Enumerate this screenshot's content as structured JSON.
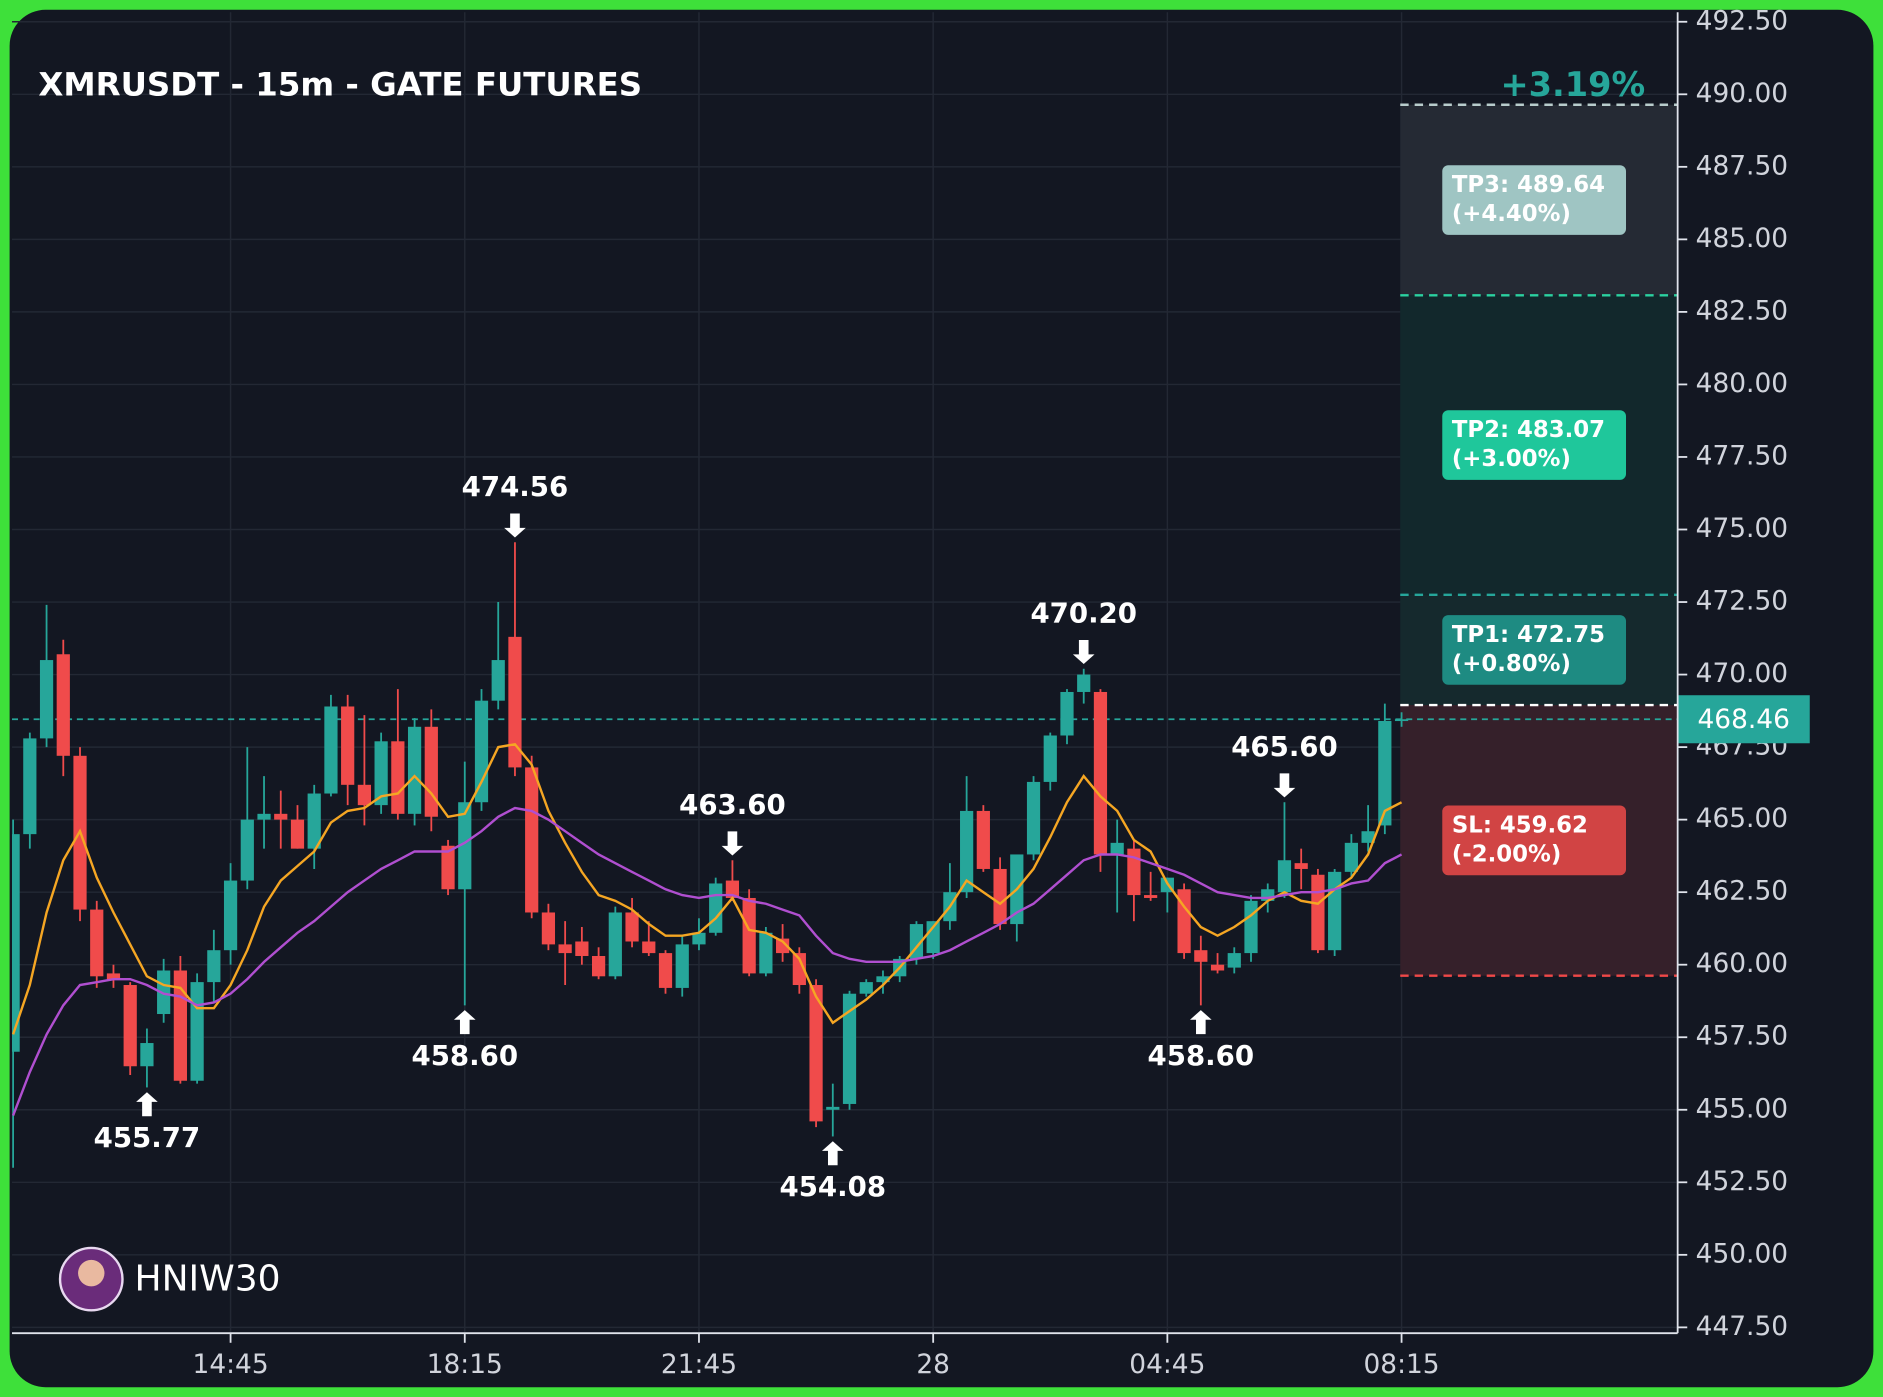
{
  "chart_data": {
    "type": "candlestick",
    "title": "XMRUSDT - 15m - GATE FUTURES",
    "change_label": "+3.19%",
    "watermark": "HNIW30",
    "categories": [
      null,
      null,
      null,
      null,
      null,
      null,
      null,
      null,
      null,
      null,
      null,
      null,
      null,
      "14:45",
      null,
      null,
      null,
      null,
      null,
      null,
      null,
      null,
      null,
      null,
      null,
      null,
      null,
      "18:15",
      null,
      null,
      null,
      null,
      null,
      null,
      null,
      null,
      null,
      null,
      null,
      null,
      null,
      "21:45",
      null,
      null,
      null,
      null,
      null,
      null,
      null,
      null,
      null,
      null,
      null,
      null,
      null,
      "28",
      null,
      null,
      null,
      null,
      null,
      null,
      null,
      null,
      null,
      null,
      null,
      null,
      null,
      "04:45",
      null,
      null,
      null,
      null,
      null,
      null,
      null,
      null,
      null,
      null,
      null,
      null,
      null,
      "08:15"
    ],
    "ohlc": {
      "open": [
        457,
        464.5,
        467.8,
        470.7,
        467.2,
        461.9,
        459.7,
        459.3,
        456.5,
        458.3,
        459.8,
        456.0,
        459.4,
        460.5,
        462.9,
        465.0,
        465.2,
        465.0,
        464,
        465.9,
        468.9,
        466.2,
        465.5,
        467.7,
        465.2,
        468.2,
        464.1,
        462.6,
        465.6,
        469.1,
        471.3,
        466.8,
        461.8,
        460.7,
        460.8,
        460.3,
        459.6,
        461.8,
        460.8,
        460.4,
        459.2,
        460.7,
        461.1,
        462.9,
        462.3,
        459.7,
        460.9,
        460.4,
        459.3,
        455.0,
        455.2,
        459,
        459.4,
        459.6,
        460.2,
        460.4,
        461.5,
        462.5,
        465.3,
        463.3,
        461.4,
        463.8,
        466.3,
        467.9,
        469.4,
        469.4,
        463.8,
        464.0,
        462.4,
        462.5,
        462.6,
        460.5,
        460,
        459.9,
        460.4,
        462.2,
        462.5,
        463.5,
        463.1,
        460.5,
        463.2,
        464.2,
        464.8,
        468.4
      ],
      "high": [
        465,
        468,
        472.4,
        471.2,
        467.5,
        462.2,
        460,
        459.4,
        457.8,
        460.2,
        460.3,
        459.7,
        461.2,
        463.5,
        467.5,
        466.5,
        466,
        465.5,
        466.2,
        469.3,
        469.3,
        468.6,
        468,
        469.5,
        468.5,
        468.8,
        464.3,
        467,
        469.5,
        472.5,
        474.56,
        467.2,
        462.1,
        461.5,
        461.3,
        460.6,
        462,
        462.3,
        461.5,
        460.5,
        461,
        461.6,
        463,
        463.6,
        462.6,
        461.3,
        461.4,
        460.6,
        459.5,
        455.9,
        459.1,
        459.5,
        459.8,
        460.3,
        461.5,
        461.5,
        463.5,
        466.5,
        465.5,
        463.7,
        463.8,
        466.5,
        468,
        469.5,
        470.2,
        469.5,
        465,
        464.3,
        463.2,
        463,
        462.8,
        461,
        460.4,
        460.6,
        462.4,
        462.8,
        465.6,
        464,
        463.3,
        463.3,
        464.5,
        465.5,
        469,
        468.7
      ],
      "low": [
        453,
        464,
        467.5,
        466.5,
        461.5,
        459.2,
        459.2,
        456.2,
        455.77,
        458,
        455.9,
        455.9,
        458.7,
        460,
        462.6,
        464,
        464,
        464,
        463.3,
        465.8,
        465.5,
        464.8,
        465.2,
        465,
        464.8,
        464.6,
        462.4,
        458.6,
        465.3,
        468.8,
        466.5,
        461.6,
        460.5,
        459.3,
        460,
        459.5,
        459.5,
        460.6,
        460.3,
        459,
        458.9,
        460.5,
        461,
        462.2,
        459.6,
        459.6,
        460.1,
        459,
        454.4,
        454.08,
        455,
        458.9,
        459,
        459.4,
        460,
        460.2,
        461.2,
        462.3,
        463.2,
        461.2,
        460.8,
        463.6,
        466,
        467.6,
        469,
        463.2,
        461.8,
        461.5,
        462.2,
        461.8,
        460.2,
        458.6,
        459.7,
        459.7,
        460.1,
        461.8,
        462.3,
        462.6,
        460.4,
        460.3,
        463,
        463.9,
        464.5,
        468.2
      ],
      "close": [
        464.5,
        467.8,
        470.5,
        467.2,
        461.9,
        459.6,
        459.5,
        456.5,
        457.3,
        459.8,
        456.0,
        459.4,
        460.5,
        462.9,
        465.0,
        465.2,
        465.0,
        464.0,
        465.9,
        468.9,
        466.2,
        465.5,
        467.7,
        465.2,
        468.2,
        465.1,
        462.6,
        465.6,
        469.1,
        470.5,
        466.8,
        461.8,
        460.7,
        460.4,
        460.3,
        459.6,
        461.8,
        460.8,
        460.4,
        459.2,
        460.7,
        461.1,
        462.8,
        462.3,
        459.7,
        461.1,
        460.4,
        459.3,
        454.6,
        455.1,
        459.0,
        459.4,
        459.6,
        460.2,
        461.4,
        461.5,
        462.5,
        465.3,
        463.3,
        461.4,
        463.8,
        466.3,
        467.9,
        469.4,
        470.0,
        463.8,
        464.2,
        462.4,
        462.3,
        463.0,
        460.4,
        460.1,
        459.8,
        460.4,
        462.2,
        462.6,
        463.6,
        463.3,
        460.5,
        463.2,
        464.2,
        464.6,
        468.4,
        468.46
      ]
    },
    "color_up": "#26a69a",
    "color_down": "#f04b4b",
    "lines": [
      {
        "color": "#f5a623",
        "values": [
          457.6,
          459.3,
          461.8,
          463.6,
          464.6,
          463.0,
          461.8,
          460.7,
          459.6,
          459.3,
          459.2,
          458.5,
          458.5,
          459.3,
          460.5,
          462.0,
          462.9,
          463.4,
          463.9,
          464.9,
          465.3,
          465.4,
          465.8,
          465.9,
          466.5,
          465.9,
          465.1,
          465.2,
          466.3,
          467.5,
          467.6,
          466.9,
          465.3,
          464.2,
          463.2,
          462.4,
          462.2,
          461.9,
          461.4,
          461.0,
          461.0,
          461.1,
          461.6,
          462.3,
          461.2,
          461.1,
          460.8,
          460.2,
          458.9,
          458.0,
          458.4,
          458.8,
          459.3,
          459.9,
          460.6,
          461.3,
          462.0,
          462.9,
          462.5,
          462.1,
          462.6,
          463.3,
          464.4,
          465.6,
          466.5,
          465.8,
          465.3,
          464.3,
          463.9,
          462.8,
          462.0,
          461.3,
          461.0,
          461.3,
          461.7,
          462.2,
          462.5,
          462.2,
          462.1,
          462.6,
          463.0,
          463.8,
          465.3,
          465.6
        ]
      },
      {
        "color": "#b04fd0",
        "values": [
          454.8,
          456.3,
          457.6,
          458.6,
          459.3,
          459.4,
          459.5,
          459.5,
          459.3,
          459.0,
          458.9,
          458.6,
          458.7,
          459.0,
          459.5,
          460.1,
          460.6,
          461.1,
          461.5,
          462.0,
          462.5,
          462.9,
          463.3,
          463.6,
          463.9,
          463.9,
          463.9,
          464.2,
          464.6,
          465.1,
          465.4,
          465.3,
          465.0,
          464.6,
          464.2,
          463.8,
          463.5,
          463.2,
          462.9,
          462.6,
          462.4,
          462.3,
          462.4,
          462.4,
          462.2,
          462.1,
          461.9,
          461.7,
          461.0,
          460.4,
          460.2,
          460.1,
          460.1,
          460.1,
          460.2,
          460.3,
          460.5,
          460.8,
          461.1,
          461.4,
          461.8,
          462.1,
          462.6,
          463.1,
          463.6,
          463.8,
          463.8,
          463.7,
          463.5,
          463.3,
          463.1,
          462.8,
          462.5,
          462.4,
          462.3,
          462.3,
          462.4,
          462.5,
          462.5,
          462.6,
          462.8,
          462.9,
          463.5,
          463.8
        ]
      }
    ],
    "annotations": [
      {
        "value": 455.77,
        "label": "455.77"
      },
      {
        "value": 458.6,
        "label": "458.60"
      },
      {
        "value": 474.56,
        "label": "474.56"
      },
      {
        "value": 463.6,
        "label": "463.60"
      },
      {
        "value": 454.08,
        "label": "454.08"
      },
      {
        "value": 470.2,
        "label": "470.20"
      },
      {
        "value": 458.6,
        "label": "458.60"
      },
      {
        "value": 465.6,
        "label": "465.60"
      }
    ],
    "last_price": {
      "value": 468.46,
      "label": "468.46"
    },
    "entry": 468.95,
    "levels": [
      {
        "value": 489.64,
        "label": "TP3: 489.64",
        "change": "(+4.40%)",
        "color": "#b8cccc",
        "fill": "#252a34",
        "box": "#9fc5c3"
      },
      {
        "value": 483.07,
        "label": "TP2: 483.07",
        "change": "(+3.00%)",
        "color": "#2bd1a0",
        "fill": "#12282c",
        "box": "#1fc79b"
      },
      {
        "value": 472.75,
        "label": "TP1: 472.75",
        "change": "(+0.80%)",
        "color": "#26a69a",
        "fill": "#15292d",
        "box": "#1e8b82"
      },
      {
        "value": 459.62,
        "label": "SL: 459.62",
        "change": "(-2.00%)",
        "color": "#f04848",
        "fill": "#35202a",
        "box": "#d14444"
      }
    ],
    "ylim": [
      447.3,
      492.83
    ],
    "yticks": [
      {
        "value": 447.5,
        "label": "447.50"
      },
      {
        "value": 450,
        "label": "450.00"
      },
      {
        "value": 452.5,
        "label": "452.50"
      },
      {
        "value": 455,
        "label": "455.00"
      },
      {
        "value": 457.5,
        "label": "457.50"
      },
      {
        "value": 460,
        "label": "460.00"
      },
      {
        "value": 462.5,
        "label": "462.50"
      },
      {
        "value": 465,
        "label": "465.00"
      },
      {
        "value": 467.5,
        "label": "467.50"
      },
      {
        "value": 470,
        "label": "470.00"
      },
      {
        "value": 472.5,
        "label": "472.50"
      },
      {
        "value": 475,
        "label": "475.00"
      },
      {
        "value": 477.5,
        "label": "477.50"
      },
      {
        "value": 480,
        "label": "480.00"
      },
      {
        "value": 482.5,
        "label": "482.50"
      },
      {
        "value": 485,
        "label": "485.00"
      },
      {
        "value": 487.5,
        "label": "487.50"
      },
      {
        "value": 490,
        "label": "490.00"
      },
      {
        "value": 492.5,
        "label": "492.50"
      }
    ],
    "grid": true
  }
}
